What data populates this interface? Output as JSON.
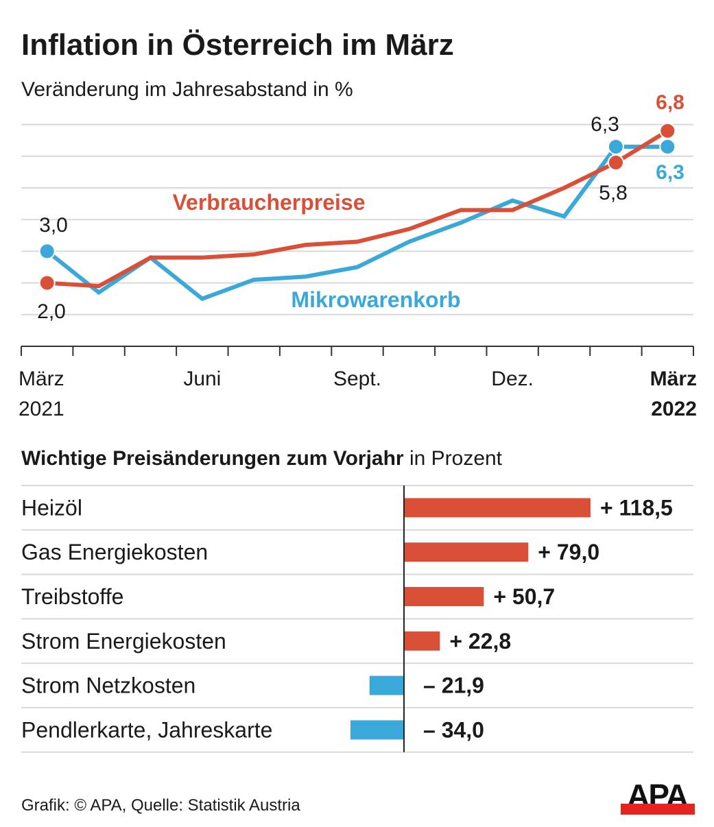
{
  "title": "Inflation in Österreich im März",
  "subtitle": "Veränderung im Jahresabstand in %",
  "colors": {
    "red": "#d94f37",
    "blue": "#3aa8d8",
    "grid": "#d9d9d9",
    "text": "#1a1a1a"
  },
  "chart_data": [
    {
      "type": "line",
      "title": "Inflation in Österreich im März",
      "subtitle": "Veränderung im Jahresabstand in %",
      "x": [
        "2021-03",
        "2021-04",
        "2021-05",
        "2021-06",
        "2021-07",
        "2021-08",
        "2021-09",
        "2021-10",
        "2021-11",
        "2021-12",
        "2022-01",
        "2022-02",
        "2022-03"
      ],
      "ylim": [
        0,
        7
      ],
      "grid": true,
      "x_tick_labels": [
        {
          "month": "2021-03",
          "line1": "März",
          "line2": "2021",
          "bold": false
        },
        {
          "month": "2021-06",
          "line1": "Juni",
          "line2": "",
          "bold": false
        },
        {
          "month": "2021-09",
          "line1": "Sept.",
          "line2": "",
          "bold": false
        },
        {
          "month": "2021-12",
          "line1": "Dez.",
          "line2": "",
          "bold": false
        },
        {
          "month": "2022-03",
          "line1": "März",
          "line2": "2022",
          "bold": true
        }
      ],
      "series": [
        {
          "name": "Verbraucherpreise",
          "color": "#d94f37",
          "values": [
            2.0,
            1.9,
            2.8,
            2.8,
            2.9,
            3.2,
            3.3,
            3.7,
            4.3,
            4.3,
            5.0,
            5.8,
            6.8
          ]
        },
        {
          "name": "Mikrowarenkorb",
          "color": "#3aa8d8",
          "values": [
            3.0,
            1.7,
            2.8,
            1.5,
            2.1,
            2.2,
            2.5,
            3.3,
            3.9,
            4.6,
            4.1,
            6.3,
            6.3
          ]
        }
      ],
      "data_labels": [
        {
          "series": 0,
          "index": 0,
          "text": "2,0"
        },
        {
          "series": 1,
          "index": 0,
          "text": "3,0"
        },
        {
          "series": 1,
          "index": 11,
          "text": "6,3"
        },
        {
          "series": 0,
          "index": 11,
          "text": "5,8"
        },
        {
          "series": 0,
          "index": 12,
          "text": "6,8"
        },
        {
          "series": 1,
          "index": 12,
          "text": "6,3"
        }
      ]
    },
    {
      "type": "bar",
      "orientation": "horizontal",
      "title_bold": "Wichtige Preisänderungen zum Vorjahr",
      "title_rest": " in Prozent",
      "categories": [
        "Heizöl",
        "Gas Energiekosten",
        "Treibstoffe",
        "Strom Energiekosten",
        "Strom Netzkosten",
        "Pendlerkarte, Jahreskarte"
      ],
      "values": [
        118.5,
        79.0,
        50.7,
        22.8,
        -21.9,
        -34.0
      ],
      "value_labels": [
        "+ 118,5",
        "+ 79,0",
        "+ 50,7",
        "+ 22,8",
        "– 21,9",
        "– 34,0"
      ],
      "positive_color": "#d94f37",
      "negative_color": "#3aa8d8"
    }
  ],
  "footer": "Grafik: © APA, Quelle: Statistik Austria",
  "logo": {
    "text": "APA",
    "bar_color": "#e52420"
  }
}
